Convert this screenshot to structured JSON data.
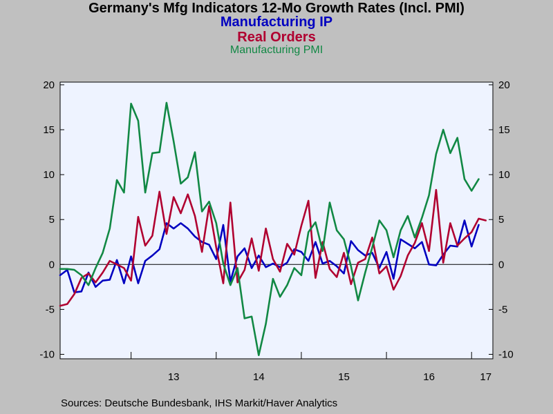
{
  "chart_data": {
    "type": "line",
    "title": "Germany's Mfg Indicators 12-Mo Growth Rates (Incl. PMI)",
    "legend_titles": [
      "Manufacturing IP",
      "Real Orders",
      "Manufacturing PMI"
    ],
    "source": "Sources:  Deutsche Bundesbank, IHS Markit/Haver Analytics",
    "ylim": [
      -10.5,
      20.3
    ],
    "y_ticks": [
      20,
      15,
      10,
      5,
      0,
      -5,
      -10
    ],
    "y_tick_labels": [
      "20",
      "15",
      "10",
      "5",
      "0",
      "-5",
      "-10"
    ],
    "x_start": "2012-03",
    "x_end": "2017-04",
    "x_tick_labels": [
      {
        "label": "13",
        "date": "2013-07"
      },
      {
        "label": "14",
        "date": "2014-07"
      },
      {
        "label": "15",
        "date": "2015-07"
      },
      {
        "label": "16",
        "date": "2016-07"
      },
      {
        "label": "17",
        "date": "2017-03"
      }
    ],
    "x_tick_marks": [
      "2013-01",
      "2014-01",
      "2015-01",
      "2016-01",
      "2017-01"
    ],
    "zero_line": true,
    "series": [
      {
        "name": "Manufacturing IP",
        "color": "#0000c0",
        "values": [
          -1.2,
          -0.6,
          -3.1,
          -3.0,
          -0.9,
          -2.5,
          -1.8,
          -1.7,
          0.5,
          -2.1,
          0.9,
          -2.1,
          0.4,
          1.0,
          1.7,
          4.6,
          4.0,
          4.6,
          4.0,
          3.1,
          2.5,
          2.2,
          0.6,
          4.4,
          -1.9,
          0.9,
          1.8,
          -0.4,
          1.0,
          -0.3,
          0.1,
          -0.3,
          0.2,
          1.7,
          1.4,
          0.4,
          2.5,
          0.1,
          0.4,
          -0.2,
          -1.0,
          2.6,
          1.6,
          1.0,
          1.3,
          -0.4,
          1.4,
          -1.6,
          2.8,
          2.3,
          1.8,
          2.5,
          0.0,
          -0.1,
          1.1,
          2.1,
          2.0,
          4.9,
          2.0,
          4.4
        ]
      },
      {
        "name": "Real Orders",
        "color": "#b00030",
        "values": [
          -4.6,
          -4.4,
          -3.3,
          -1.5,
          -1.0,
          -2.0,
          -0.9,
          0.4,
          0.0,
          -0.4,
          -1.8,
          5.3,
          2.1,
          3.2,
          8.1,
          3.4,
          7.5,
          5.7,
          7.8,
          5.4,
          1.4,
          6.5,
          1.9,
          -2.1,
          6.9,
          -2.0,
          -0.6,
          2.9,
          -0.7,
          4.0,
          0.6,
          -0.8,
          2.3,
          1.1,
          4.3,
          7.1,
          -1.5,
          2.5,
          -0.5,
          -1.4,
          1.3,
          -2.2,
          0.2,
          0.6,
          3.0,
          -1.0,
          -0.2,
          -2.8,
          -1.3,
          1.0,
          2.4,
          4.6,
          1.5,
          8.3,
          0.2,
          4.6,
          2.1,
          2.9,
          3.6,
          5.1,
          4.9
        ]
      },
      {
        "name": "Manufacturing PMI",
        "color": "#118844",
        "values": [
          -0.5,
          -0.5,
          -0.6,
          -1.2,
          -2.3,
          -0.4,
          1.3,
          4.0,
          9.4,
          8.0,
          17.9,
          16.0,
          8.0,
          12.4,
          12.5,
          18.0,
          13.7,
          9.0,
          9.7,
          12.5,
          5.9,
          7.0,
          4.6,
          0.1,
          -2.3,
          -0.4,
          -6.0,
          -5.8,
          -10.1,
          -6.6,
          -1.6,
          -3.6,
          -2.3,
          -0.4,
          -1.2,
          3.6,
          4.7,
          1.5,
          6.9,
          3.8,
          2.8,
          -0.2,
          -4.0,
          -0.9,
          1.9,
          4.9,
          3.8,
          0.8,
          3.8,
          5.4,
          3.0,
          5.2,
          7.7,
          12.3,
          15.0,
          12.4,
          14.1,
          9.5,
          8.2,
          9.5
        ]
      }
    ]
  }
}
